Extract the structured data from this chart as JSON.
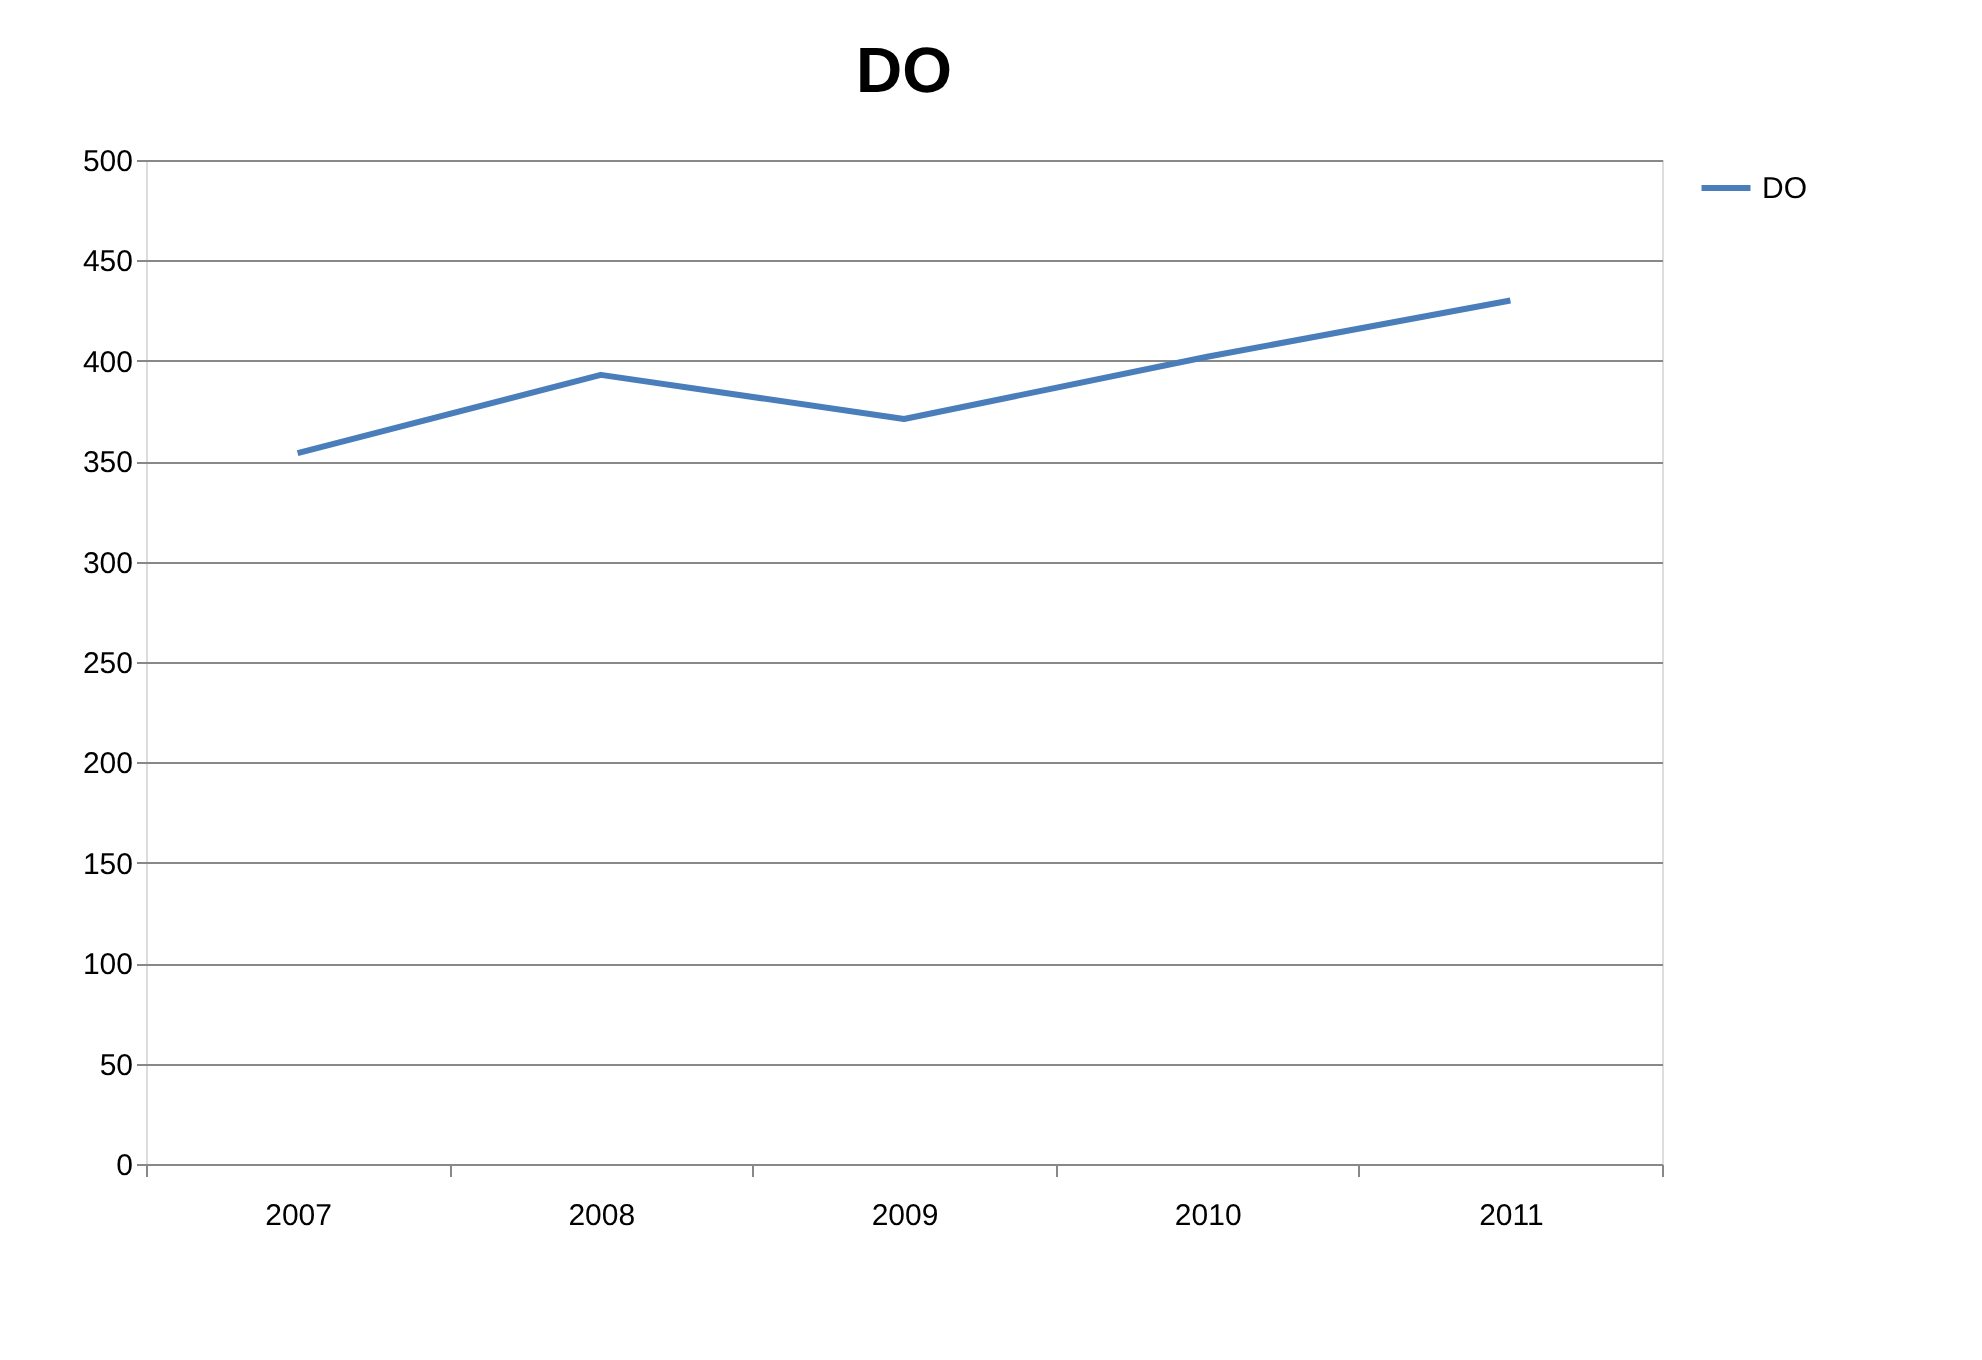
{
  "chart_data": {
    "type": "line",
    "title": "DO",
    "categories": [
      "2007",
      "2008",
      "2009",
      "2010",
      "2011"
    ],
    "series": [
      {
        "name": "DO",
        "color": "#4a7ebb",
        "values": [
          354,
          393,
          371,
          402,
          430
        ]
      }
    ],
    "ylim": [
      0,
      500
    ],
    "yticks": [
      0,
      50,
      100,
      150,
      200,
      250,
      300,
      350,
      400,
      450,
      500
    ],
    "grid": "y",
    "legend": "right",
    "marker": "none",
    "line_style": "solid"
  }
}
